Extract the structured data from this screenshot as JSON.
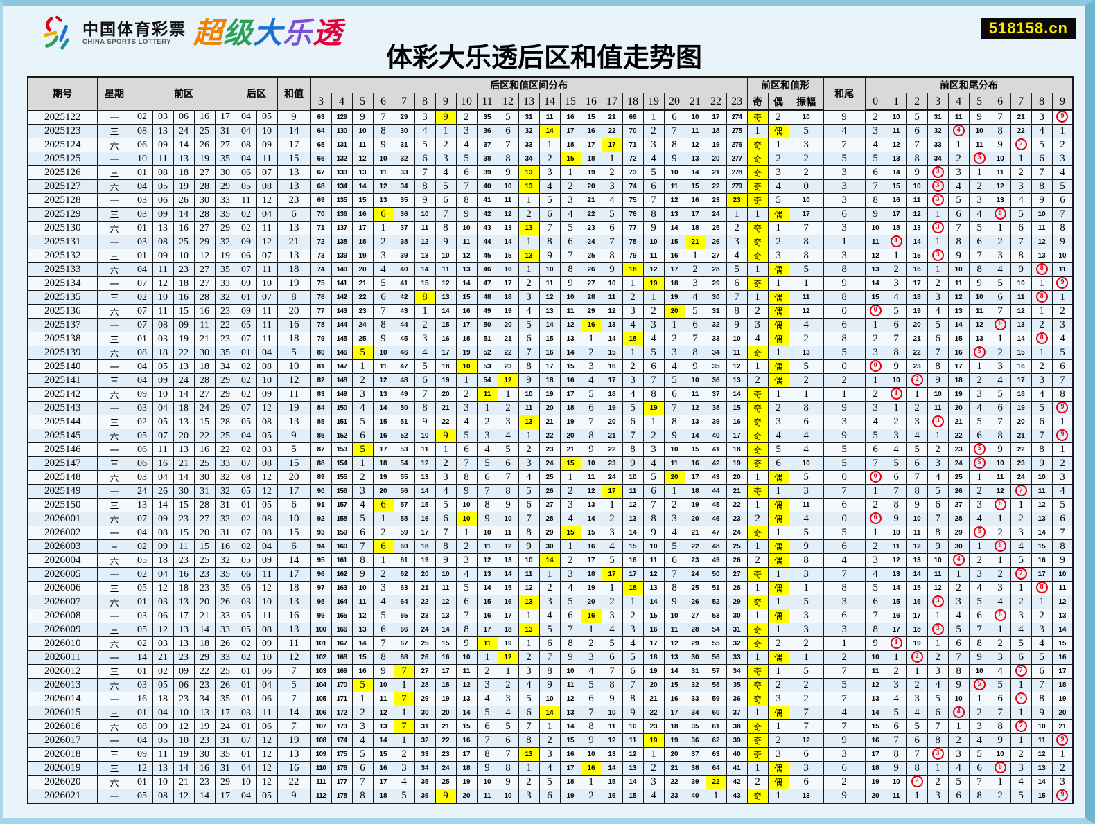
{
  "page": {
    "title": "体彩大乐透后区和值走势图",
    "badge": "518158.cn",
    "logo": {
      "cn": "中国体育彩票",
      "en": "CHINA SPORTS LOTTERY",
      "brand": "超级大乐透",
      "brand_colors": [
        "#f08200",
        "#2aa05a",
        "#1d6fd1",
        "#7b4fd8",
        "#e60039"
      ]
    }
  },
  "colors": {
    "hit_bg": "#ffff00",
    "circle": "#e60012",
    "badge_bg": "#0a0a0a",
    "badge_fg": "#ffe800",
    "header_bg": "#d9d9d9",
    "row_odd": "#f3f9fd",
    "row_even": "#e2eef8",
    "page_bg": "#e9f4fa"
  },
  "table": {
    "group_headers": {
      "dist": "后区和值区间分布",
      "shape": "前区和值形",
      "tail_dist": "前区和尾分布"
    },
    "col_headers": {
      "issue": "期号",
      "week": "星期",
      "front": "前区",
      "back": "后区",
      "sum": "和值",
      "odd": "奇",
      "even": "偶",
      "amp": "振幅",
      "tail": "和尾"
    },
    "dist_cols": [
      3,
      4,
      5,
      6,
      7,
      8,
      9,
      10,
      11,
      12,
      13,
      14,
      15,
      16,
      17,
      18,
      19,
      20,
      21,
      22,
      23
    ],
    "tail_cols": [
      0,
      1,
      2,
      3,
      4,
      5,
      6,
      7,
      8,
      9
    ]
  },
  "chart_data": {
    "type": "table",
    "title": "体彩大乐透后区和值走势图",
    "note_semantics": "dist and tail cells show omission counts; when back-area sum hits a column the cell shows the column value highlighted yellow; when sum tail hits, the digit is red-circled",
    "seeds": {
      "prev_sum": 19,
      "dist_prev": [
        62,
        128,
        8,
        6,
        28,
        2,
        0,
        1,
        34,
        4,
        30,
        10,
        15,
        14,
        20,
        68,
        0,
        5,
        9,
        16,
        273
      ],
      "tail_prev": [
        1,
        9,
        4,
        30,
        10,
        8,
        6,
        20,
        2,
        0
      ],
      "odd_miss_prev": 0,
      "even_miss_prev": 1
    },
    "rows": [
      {
        "i": "2025122",
        "w": "一",
        "f": [
          "02",
          "03",
          "06",
          "16",
          "17"
        ],
        "b": [
          "04",
          "05"
        ]
      },
      {
        "i": "2025123",
        "w": "三",
        "f": [
          "08",
          "13",
          "24",
          "25",
          "31"
        ],
        "b": [
          "04",
          "10"
        ]
      },
      {
        "i": "2025124",
        "w": "六",
        "f": [
          "06",
          "09",
          "14",
          "26",
          "27"
        ],
        "b": [
          "08",
          "09"
        ]
      },
      {
        "i": "2025125",
        "w": "一",
        "f": [
          "10",
          "11",
          "13",
          "19",
          "35"
        ],
        "b": [
          "04",
          "11"
        ]
      },
      {
        "i": "2025126",
        "w": "三",
        "f": [
          "01",
          "08",
          "18",
          "27",
          "30"
        ],
        "b": [
          "06",
          "07"
        ]
      },
      {
        "i": "2025127",
        "w": "六",
        "f": [
          "04",
          "05",
          "19",
          "28",
          "29"
        ],
        "b": [
          "05",
          "08"
        ]
      },
      {
        "i": "2025128",
        "w": "一",
        "f": [
          "03",
          "06",
          "26",
          "30",
          "33"
        ],
        "b": [
          "11",
          "12"
        ]
      },
      {
        "i": "2025129",
        "w": "三",
        "f": [
          "03",
          "09",
          "14",
          "28",
          "35"
        ],
        "b": [
          "02",
          "04"
        ]
      },
      {
        "i": "2025130",
        "w": "六",
        "f": [
          "01",
          "13",
          "16",
          "27",
          "29"
        ],
        "b": [
          "02",
          "11"
        ]
      },
      {
        "i": "2025131",
        "w": "一",
        "f": [
          "03",
          "08",
          "25",
          "29",
          "32"
        ],
        "b": [
          "09",
          "12"
        ]
      },
      {
        "i": "2025132",
        "w": "三",
        "f": [
          "01",
          "09",
          "10",
          "12",
          "19"
        ],
        "b": [
          "06",
          "07"
        ]
      },
      {
        "i": "2025133",
        "w": "六",
        "f": [
          "04",
          "11",
          "23",
          "27",
          "35"
        ],
        "b": [
          "07",
          "11"
        ]
      },
      {
        "i": "2025134",
        "w": "一",
        "f": [
          "07",
          "12",
          "18",
          "27",
          "33"
        ],
        "b": [
          "09",
          "10"
        ]
      },
      {
        "i": "2025135",
        "w": "三",
        "f": [
          "02",
          "10",
          "16",
          "28",
          "32"
        ],
        "b": [
          "01",
          "07"
        ]
      },
      {
        "i": "2025136",
        "w": "六",
        "f": [
          "07",
          "11",
          "15",
          "16",
          "23"
        ],
        "b": [
          "09",
          "11"
        ]
      },
      {
        "i": "2025137",
        "w": "一",
        "f": [
          "07",
          "08",
          "09",
          "11",
          "22"
        ],
        "b": [
          "05",
          "11"
        ]
      },
      {
        "i": "2025138",
        "w": "三",
        "f": [
          "01",
          "03",
          "19",
          "21",
          "23"
        ],
        "b": [
          "07",
          "11"
        ]
      },
      {
        "i": "2025139",
        "w": "六",
        "f": [
          "08",
          "18",
          "22",
          "30",
          "35"
        ],
        "b": [
          "01",
          "04"
        ]
      },
      {
        "i": "2025140",
        "w": "一",
        "f": [
          "04",
          "05",
          "13",
          "18",
          "34"
        ],
        "b": [
          "02",
          "08"
        ]
      },
      {
        "i": "2025141",
        "w": "三",
        "f": [
          "04",
          "09",
          "24",
          "28",
          "29"
        ],
        "b": [
          "02",
          "10"
        ]
      },
      {
        "i": "2025142",
        "w": "六",
        "f": [
          "09",
          "10",
          "14",
          "27",
          "29"
        ],
        "b": [
          "02",
          "09"
        ]
      },
      {
        "i": "2025143",
        "w": "一",
        "f": [
          "03",
          "04",
          "18",
          "24",
          "29"
        ],
        "b": [
          "07",
          "12"
        ]
      },
      {
        "i": "2025144",
        "w": "三",
        "f": [
          "02",
          "05",
          "13",
          "15",
          "28"
        ],
        "b": [
          "05",
          "08"
        ]
      },
      {
        "i": "2025145",
        "w": "六",
        "f": [
          "05",
          "07",
          "20",
          "22",
          "25"
        ],
        "b": [
          "04",
          "05"
        ]
      },
      {
        "i": "2025146",
        "w": "一",
        "f": [
          "06",
          "11",
          "13",
          "16",
          "22"
        ],
        "b": [
          "02",
          "03"
        ]
      },
      {
        "i": "2025147",
        "w": "三",
        "f": [
          "06",
          "16",
          "21",
          "25",
          "33"
        ],
        "b": [
          "07",
          "08"
        ]
      },
      {
        "i": "2025148",
        "w": "六",
        "f": [
          "03",
          "04",
          "14",
          "30",
          "32"
        ],
        "b": [
          "08",
          "12"
        ]
      },
      {
        "i": "2025149",
        "w": "一",
        "f": [
          "24",
          "26",
          "30",
          "31",
          "32"
        ],
        "b": [
          "05",
          "12"
        ]
      },
      {
        "i": "2025150",
        "w": "三",
        "f": [
          "13",
          "14",
          "15",
          "28",
          "31"
        ],
        "b": [
          "01",
          "05"
        ]
      },
      {
        "i": "2026001",
        "w": "六",
        "f": [
          "07",
          "09",
          "23",
          "27",
          "32"
        ],
        "b": [
          "02",
          "08"
        ]
      },
      {
        "i": "2026002",
        "w": "一",
        "f": [
          "04",
          "08",
          "15",
          "20",
          "31"
        ],
        "b": [
          "07",
          "08"
        ]
      },
      {
        "i": "2026003",
        "w": "三",
        "f": [
          "02",
          "09",
          "11",
          "15",
          "16"
        ],
        "b": [
          "02",
          "04"
        ]
      },
      {
        "i": "2026004",
        "w": "六",
        "f": [
          "05",
          "18",
          "23",
          "25",
          "32"
        ],
        "b": [
          "05",
          "09"
        ]
      },
      {
        "i": "2026005",
        "w": "一",
        "f": [
          "02",
          "04",
          "16",
          "23",
          "35"
        ],
        "b": [
          "06",
          "11"
        ]
      },
      {
        "i": "2026006",
        "w": "三",
        "f": [
          "05",
          "12",
          "18",
          "23",
          "35"
        ],
        "b": [
          "06",
          "12"
        ]
      },
      {
        "i": "2026007",
        "w": "六",
        "f": [
          "01",
          "03",
          "13",
          "20",
          "26"
        ],
        "b": [
          "03",
          "10"
        ]
      },
      {
        "i": "2026008",
        "w": "一",
        "f": [
          "03",
          "06",
          "17",
          "21",
          "33"
        ],
        "b": [
          "05",
          "11"
        ]
      },
      {
        "i": "2026009",
        "w": "三",
        "f": [
          "05",
          "12",
          "13",
          "14",
          "33"
        ],
        "b": [
          "05",
          "08"
        ]
      },
      {
        "i": "2026010",
        "w": "六",
        "f": [
          "02",
          "03",
          "13",
          "18",
          "26"
        ],
        "b": [
          "02",
          "09"
        ]
      },
      {
        "i": "2026011",
        "w": "一",
        "f": [
          "14",
          "21",
          "23",
          "29",
          "33"
        ],
        "b": [
          "02",
          "10"
        ]
      },
      {
        "i": "2026012",
        "w": "三",
        "f": [
          "01",
          "02",
          "09",
          "22",
          "25"
        ],
        "b": [
          "01",
          "06"
        ]
      },
      {
        "i": "2026013",
        "w": "六",
        "f": [
          "03",
          "05",
          "06",
          "23",
          "26"
        ],
        "b": [
          "01",
          "04"
        ]
      },
      {
        "i": "2026014",
        "w": "一",
        "f": [
          "16",
          "18",
          "23",
          "34",
          "35"
        ],
        "b": [
          "01",
          "06"
        ]
      },
      {
        "i": "2026015",
        "w": "三",
        "f": [
          "01",
          "04",
          "10",
          "13",
          "17"
        ],
        "b": [
          "03",
          "11"
        ]
      },
      {
        "i": "2026016",
        "w": "六",
        "f": [
          "08",
          "09",
          "12",
          "19",
          "24"
        ],
        "b": [
          "01",
          "06"
        ]
      },
      {
        "i": "2026017",
        "w": "一",
        "f": [
          "04",
          "05",
          "10",
          "23",
          "31"
        ],
        "b": [
          "07",
          "12"
        ]
      },
      {
        "i": "2026018",
        "w": "三",
        "f": [
          "09",
          "11",
          "19",
          "30",
          "35"
        ],
        "b": [
          "01",
          "12"
        ]
      },
      {
        "i": "2026019",
        "w": "三",
        "f": [
          "12",
          "13",
          "14",
          "16",
          "31"
        ],
        "b": [
          "04",
          "12"
        ]
      },
      {
        "i": "2026020",
        "w": "六",
        "f": [
          "01",
          "10",
          "21",
          "23",
          "29"
        ],
        "b": [
          "10",
          "12"
        ]
      },
      {
        "i": "2026021",
        "w": "一",
        "f": [
          "05",
          "08",
          "12",
          "14",
          "17"
        ],
        "b": [
          "04",
          "05"
        ]
      }
    ]
  }
}
